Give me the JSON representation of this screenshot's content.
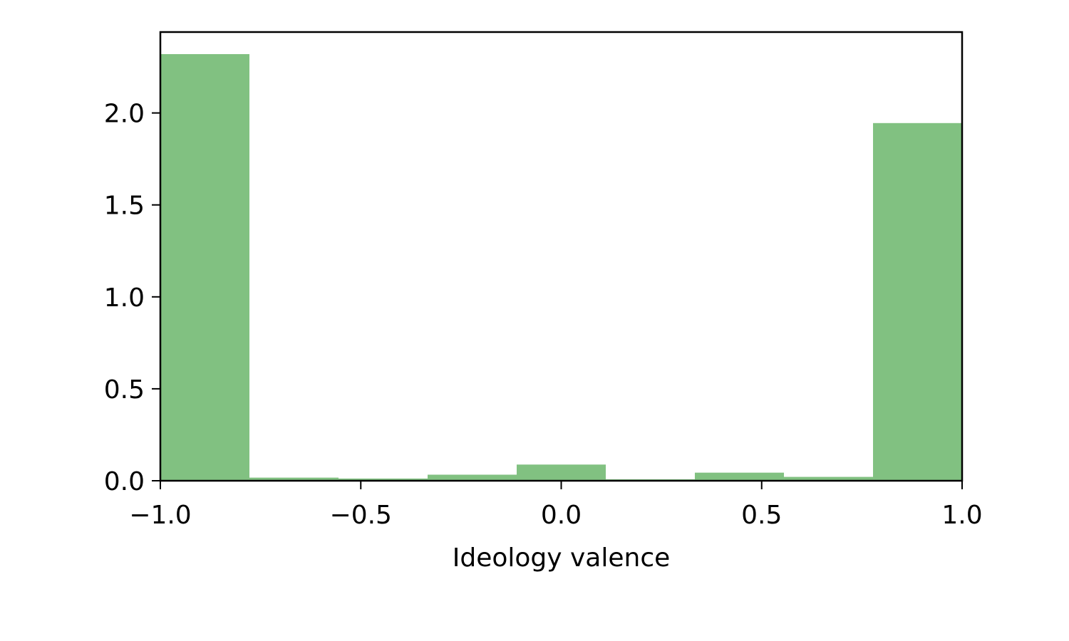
{
  "chart_data": {
    "type": "bar",
    "title": "",
    "xlabel": "Ideology valence",
    "ylabel": "",
    "xlim": [
      -1.0,
      1.0
    ],
    "ylim": [
      0,
      2.44
    ],
    "grid": false,
    "bar_color": "#81c181",
    "bin_edges": [
      -1.0,
      -0.7778,
      -0.5556,
      -0.3333,
      -0.1111,
      0.1111,
      0.3333,
      0.5556,
      0.7778,
      1.0
    ],
    "values": [
      2.32,
      0.017,
      0.012,
      0.033,
      0.088,
      0.008,
      0.044,
      0.021,
      1.945
    ],
    "x_ticks": [
      -1.0,
      -0.5,
      0.0,
      0.5,
      1.0
    ],
    "x_tick_labels": [
      "−1.0",
      "−0.5",
      "0.0",
      "0.5",
      "1.0"
    ],
    "y_ticks": [
      0.0,
      0.5,
      1.0,
      1.5,
      2.0
    ],
    "y_tick_labels": [
      "0.0",
      "0.5",
      "1.0",
      "1.5",
      "2.0"
    ]
  }
}
